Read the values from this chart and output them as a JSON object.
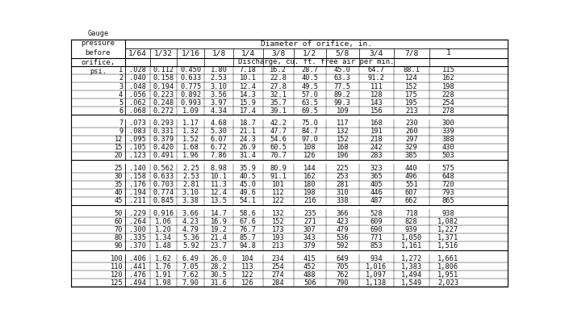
{
  "title_top": "Diameter of orifice, in.",
  "title_sub": "Discharge, cu. ft. free air per min.",
  "col_headers": [
    "1/64",
    "1/32",
    "1/16",
    "1/8",
    "1/4",
    "3/8",
    "1/2",
    "5/8",
    "3/4",
    "7/8",
    "1"
  ],
  "gauge_label": "Gauge\npressure\nbefore\norifice,\npsi.",
  "rows": [
    [
      1,
      ".028",
      "0.112",
      "0.450",
      "1.80",
      "7.18",
      "16.2",
      "28.7",
      "45.0",
      "64.7",
      "88.1",
      "115"
    ],
    [
      2,
      ".040",
      "0.158",
      "0.633",
      "2.53",
      "10.1",
      "22.8",
      "40.5",
      "63.3",
      "91.2",
      "124",
      "162"
    ],
    [
      3,
      ".048",
      "0.194",
      "0.775",
      "3.10",
      "12.4",
      "27.8",
      "49.5",
      "77.5",
      "111",
      "152",
      "198"
    ],
    [
      4,
      ".056",
      "0.223",
      "0.892",
      "3.56",
      "14.3",
      "32.1",
      "57.0",
      "89.2",
      "128",
      "175",
      "228"
    ],
    [
      5,
      ".062",
      "0.248",
      "0.993",
      "3.97",
      "15.9",
      "35.7",
      "63.5",
      "99.3",
      "143",
      "195",
      "254"
    ],
    [
      6,
      ".068",
      "0.272",
      "1.09",
      "4.34",
      "17.4",
      "39.1",
      "69.5",
      "109",
      "156",
      "213",
      "278"
    ],
    [
      7,
      ".073",
      "0.293",
      "1.17",
      "4.68",
      "18.7",
      "42.2",
      "75.0",
      "117",
      "168",
      "230",
      "300"
    ],
    [
      9,
      ".083",
      "0.331",
      "1.32",
      "5.30",
      "21.1",
      "47.7",
      "84.7",
      "132",
      "191",
      "260",
      "339"
    ],
    [
      12,
      ".095",
      "0.379",
      "1.52",
      "6.07",
      "24.3",
      "54.6",
      "97.0",
      "152",
      "218",
      "297",
      "388"
    ],
    [
      15,
      ".105",
      "0.420",
      "1.68",
      "6.72",
      "26.9",
      "60.5",
      "108",
      "168",
      "242",
      "329",
      "430"
    ],
    [
      20,
      ".123",
      "0.491",
      "1.96",
      "7.86",
      "31.4",
      "70.7",
      "126",
      "196",
      "283",
      "385",
      "503"
    ],
    [
      25,
      ".140",
      "0.562",
      "2.25",
      "8.98",
      "35.9",
      "80.9",
      "144",
      "225",
      "323",
      "440",
      "575"
    ],
    [
      30,
      ".158",
      "0.633",
      "2.53",
      "10.1",
      "40.5",
      "91.1",
      "162",
      "253",
      "365",
      "496",
      "648"
    ],
    [
      35,
      ".176",
      "0.703",
      "2.81",
      "11.3",
      "45.0",
      "101",
      "180",
      "281",
      "405",
      "551",
      "720"
    ],
    [
      40,
      ".194",
      "0.774",
      "3.10",
      "12.4",
      "49.6",
      "112",
      "198",
      "310",
      "446",
      "607",
      "793"
    ],
    [
      45,
      ".211",
      "0.845",
      "3.38",
      "13.5",
      "54.1",
      "122",
      "216",
      "338",
      "487",
      "662",
      "865"
    ],
    [
      50,
      ".229",
      "0.916",
      "3.66",
      "14.7",
      "58.6",
      "132",
      "235",
      "366",
      "528",
      "718",
      "938"
    ],
    [
      60,
      ".264",
      "1.06",
      "4.23",
      "16.9",
      "67.6",
      "152",
      "271",
      "423",
      "609",
      "828",
      "1,082"
    ],
    [
      70,
      ".300",
      "1.20",
      "4.79",
      "19.2",
      "76.7",
      "173",
      "307",
      "479",
      "690",
      "939",
      "1,227"
    ],
    [
      80,
      ".335",
      "1.34",
      "5.36",
      "21.4",
      "85.7",
      "193",
      "343",
      "536",
      "771",
      "1,050",
      "1,371"
    ],
    [
      90,
      ".370",
      "1.48",
      "5.92",
      "23.7",
      "94.8",
      "213",
      "379",
      "592",
      "853",
      "1,161",
      "1,516"
    ],
    [
      100,
      ".406",
      "1.62",
      "6.49",
      "26.0",
      "104",
      "234",
      "415",
      "649",
      "934",
      "1,272",
      "1,661"
    ],
    [
      110,
      ".441",
      "1.76",
      "7.05",
      "28.2",
      "113",
      "254",
      "452",
      "705",
      "1,016",
      "1,383",
      "1,806"
    ],
    [
      120,
      ".476",
      "1.91",
      "7.62",
      "30.5",
      "122",
      "274",
      "488",
      "762",
      "1,097",
      "1,494",
      "1,951"
    ],
    [
      125,
      ".494",
      "1.98",
      "7.90",
      "31.6",
      "126",
      "284",
      "506",
      "790",
      "1,138",
      "1,549",
      "2,023"
    ]
  ],
  "group_breaks": [
    5,
    10,
    15,
    20
  ],
  "bg_color": "#ffffff",
  "text_color": "#111111",
  "font_size": 6.2,
  "header_font_size": 6.8
}
